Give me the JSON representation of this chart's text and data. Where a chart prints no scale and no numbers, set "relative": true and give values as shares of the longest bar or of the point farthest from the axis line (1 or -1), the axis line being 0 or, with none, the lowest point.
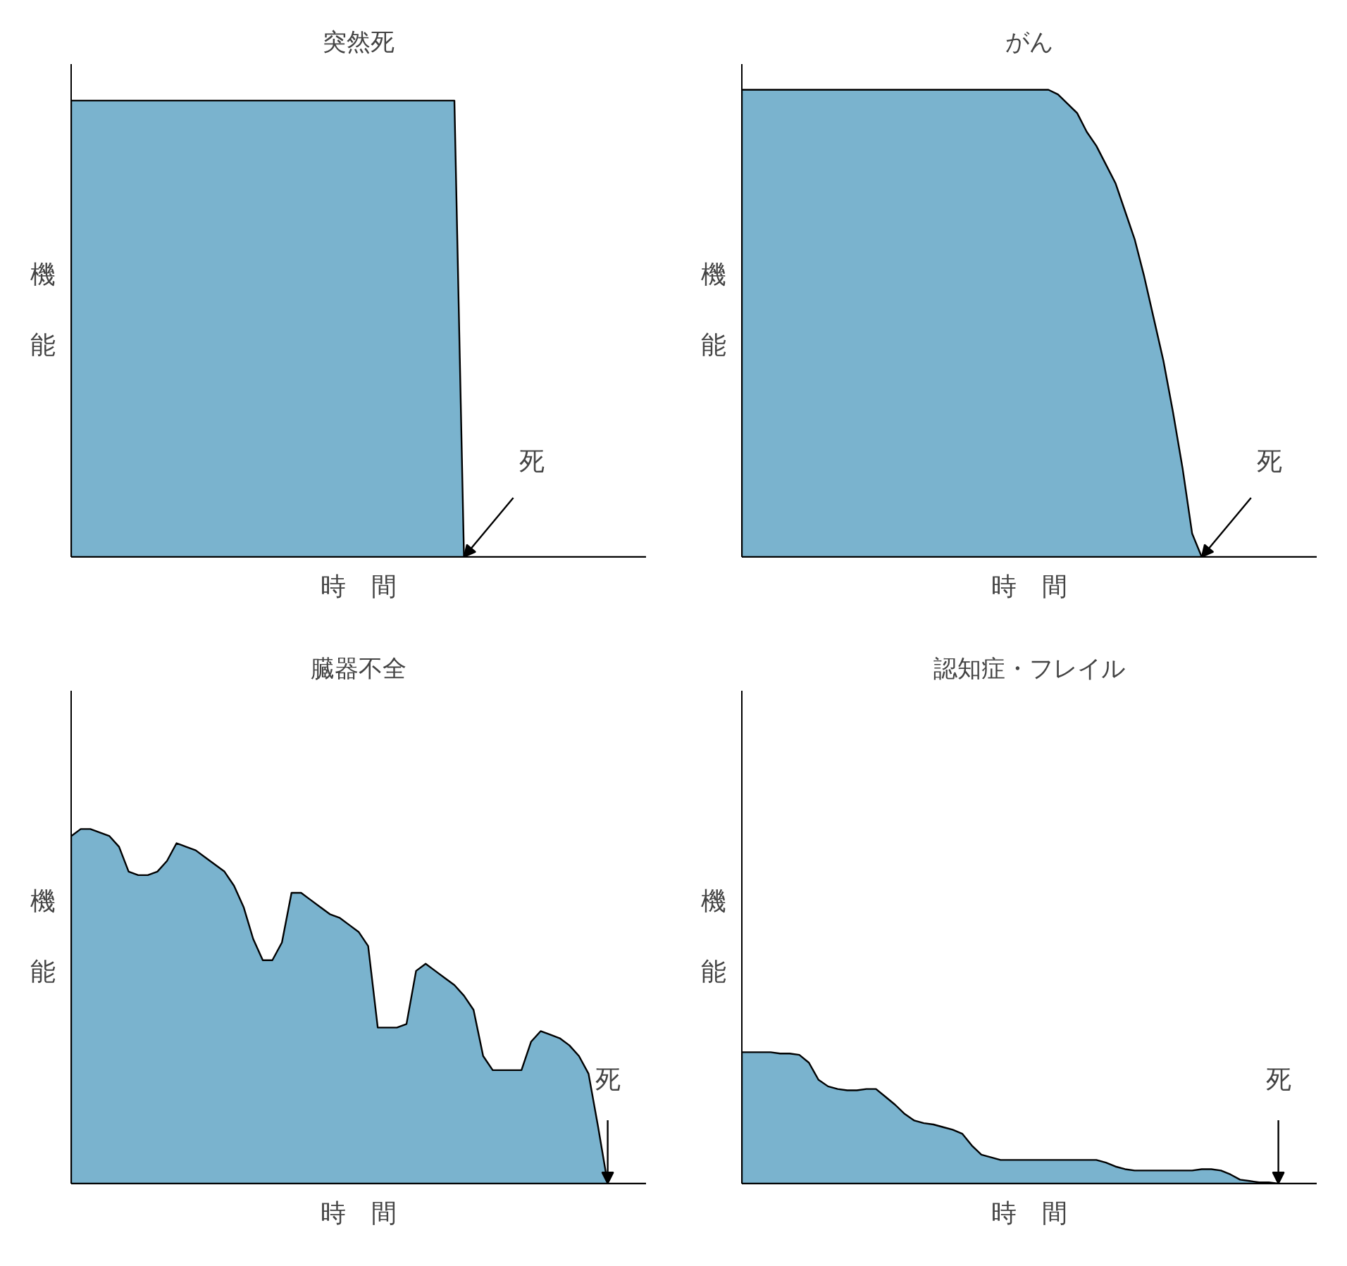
{
  "chart_data": [
    {
      "type": "area",
      "title": "突然死",
      "xlabel": "時　間",
      "ylabel": "機能",
      "relative": true,
      "grid": false,
      "color": "#7ab3ce",
      "annotations": [
        "死"
      ],
      "categories": [
        null,
        null,
        null,
        null,
        null,
        null,
        null,
        null,
        null,
        null,
        null,
        null,
        null,
        null,
        null,
        null,
        null,
        null,
        null,
        null,
        null,
        null,
        null,
        null,
        null,
        null,
        null,
        null,
        null,
        null,
        null,
        null,
        null,
        null,
        null,
        null,
        null,
        null,
        null,
        null,
        null,
        null,
        null,
        null,
        null,
        null,
        null,
        null,
        null,
        null,
        null,
        null,
        null,
        null,
        null,
        null,
        null,
        null,
        null,
        null,
        null
      ],
      "values": [
        1,
        1,
        1,
        1,
        1,
        1,
        1,
        1,
        1,
        1,
        1,
        1,
        1,
        1,
        1,
        1,
        1,
        1,
        1,
        1,
        1,
        1,
        1,
        1,
        1,
        1,
        1,
        1,
        1,
        1,
        1,
        1,
        1,
        1,
        1,
        1,
        1,
        1,
        1,
        1,
        1,
        0,
        0,
        0,
        0,
        0,
        0,
        0,
        0,
        0,
        0,
        0,
        0,
        0,
        0,
        0,
        0,
        0,
        0,
        0,
        0
      ]
    },
    {
      "type": "area",
      "title": "がん",
      "xlabel": "時　間",
      "ylabel": "機能",
      "relative": true,
      "grid": false,
      "color": "#7ab3ce",
      "annotations": [
        "死"
      ],
      "categories": [
        null,
        null,
        null,
        null,
        null,
        null,
        null,
        null,
        null,
        null,
        null,
        null,
        null,
        null,
        null,
        null,
        null,
        null,
        null,
        null,
        null,
        null,
        null,
        null,
        null,
        null,
        null,
        null,
        null,
        null,
        null,
        null,
        null,
        null,
        null,
        null,
        null,
        null,
        null,
        null,
        null,
        null,
        null,
        null,
        null,
        null,
        null,
        null,
        null,
        null,
        null,
        null,
        null,
        null,
        null,
        null,
        null,
        null,
        null,
        null,
        null
      ],
      "values": [
        1,
        1,
        1,
        1,
        1,
        1,
        1,
        1,
        1,
        1,
        1,
        1,
        1,
        1,
        1,
        1,
        1,
        1,
        1,
        1,
        1,
        1,
        1,
        1,
        1,
        1,
        1,
        1,
        1,
        1,
        1,
        1,
        1,
        0.99,
        0.97,
        0.95,
        0.91,
        0.88,
        0.84,
        0.8,
        0.74,
        0.68,
        0.6,
        0.51,
        0.42,
        0.31,
        0.19,
        0.05,
        0,
        0,
        0,
        0,
        0,
        0,
        0,
        0,
        0,
        0,
        0,
        0,
        0
      ]
    },
    {
      "type": "area",
      "title": "臓器不全",
      "xlabel": "時　間",
      "ylabel": "機能",
      "relative": true,
      "grid": false,
      "color": "#7ab3ce",
      "annotations": [
        "死"
      ],
      "categories": [
        null,
        null,
        null,
        null,
        null,
        null,
        null,
        null,
        null,
        null,
        null,
        null,
        null,
        null,
        null,
        null,
        null,
        null,
        null,
        null,
        null,
        null,
        null,
        null,
        null,
        null,
        null,
        null,
        null,
        null,
        null,
        null,
        null,
        null,
        null,
        null,
        null,
        null,
        null,
        null,
        null,
        null,
        null,
        null,
        null,
        null,
        null,
        null,
        null,
        null,
        null,
        null,
        null,
        null,
        null,
        null,
        null,
        null,
        null,
        null,
        null
      ],
      "values": [
        0.98,
        1,
        1,
        0.99,
        0.98,
        0.95,
        0.88,
        0.87,
        0.87,
        0.88,
        0.91,
        0.96,
        0.95,
        0.94,
        0.92,
        0.9,
        0.88,
        0.84,
        0.78,
        0.69,
        0.63,
        0.63,
        0.68,
        0.82,
        0.82,
        0.8,
        0.78,
        0.76,
        0.75,
        0.73,
        0.71,
        0.67,
        0.44,
        0.44,
        0.44,
        0.45,
        0.6,
        0.62,
        0.6,
        0.58,
        0.56,
        0.53,
        0.49,
        0.36,
        0.32,
        0.32,
        0.32,
        0.32,
        0.4,
        0.43,
        0.42,
        0.41,
        0.39,
        0.36,
        0.31,
        0.16,
        0,
        0,
        0,
        0,
        0
      ]
    },
    {
      "type": "area",
      "title": "認知症・フレイル",
      "xlabel": "時　間",
      "ylabel": "機能",
      "relative": true,
      "grid": false,
      "color": "#7ab3ce",
      "annotations": [
        "死"
      ],
      "categories": [
        null,
        null,
        null,
        null,
        null,
        null,
        null,
        null,
        null,
        null,
        null,
        null,
        null,
        null,
        null,
        null,
        null,
        null,
        null,
        null,
        null,
        null,
        null,
        null,
        null,
        null,
        null,
        null,
        null,
        null,
        null,
        null,
        null,
        null,
        null,
        null,
        null,
        null,
        null,
        null,
        null,
        null,
        null,
        null,
        null,
        null,
        null,
        null,
        null,
        null,
        null,
        null,
        null,
        null,
        null,
        null,
        null,
        null,
        null,
        null,
        null
      ],
      "values": [
        1,
        1,
        1,
        1,
        0.99,
        0.99,
        0.98,
        0.92,
        0.79,
        0.74,
        0.72,
        0.71,
        0.71,
        0.72,
        0.72,
        0.66,
        0.6,
        0.53,
        0.48,
        0.46,
        0.45,
        0.43,
        0.41,
        0.38,
        0.29,
        0.22,
        0.2,
        0.18,
        0.18,
        0.18,
        0.18,
        0.18,
        0.18,
        0.18,
        0.18,
        0.18,
        0.18,
        0.18,
        0.16,
        0.13,
        0.11,
        0.1,
        0.1,
        0.1,
        0.1,
        0.1,
        0.1,
        0.1,
        0.11,
        0.11,
        0.1,
        0.07,
        0.03,
        0.02,
        0.01,
        0.01,
        0,
        0,
        0,
        0,
        0
      ]
    }
  ]
}
